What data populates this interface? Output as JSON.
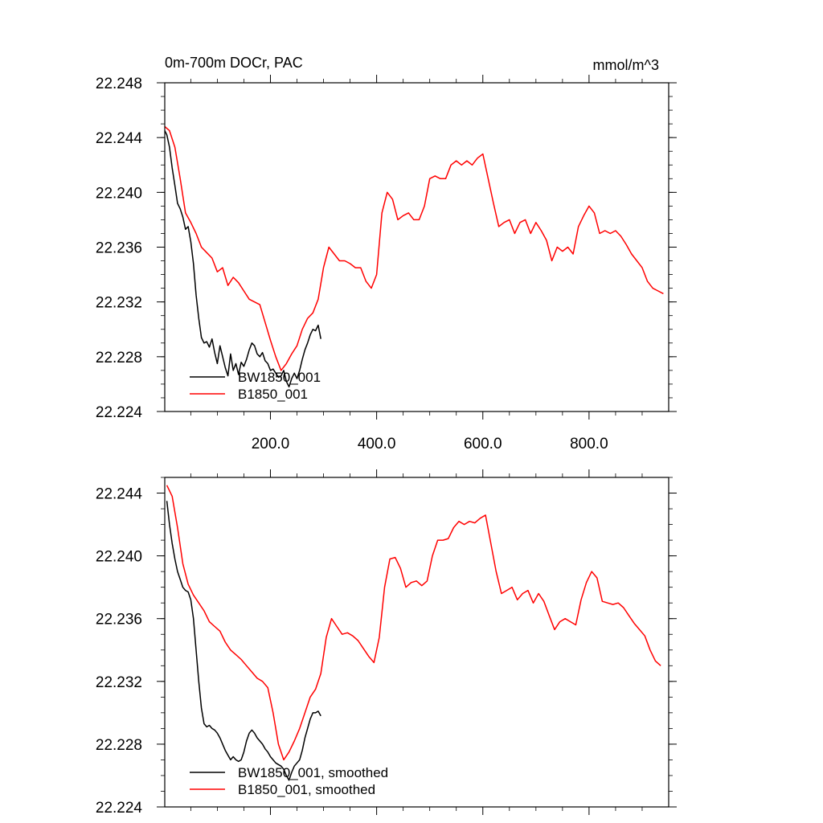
{
  "chart_data": [
    {
      "type": "line",
      "title": "0m-700m DOCr, PAC",
      "units": "mmol/m^3",
      "xlabel": "",
      "ylabel": "",
      "xlim": [
        1,
        950
      ],
      "ylim": [
        22.224,
        22.248
      ],
      "xticks": [
        200,
        400,
        600,
        800
      ],
      "xtick_labels": [
        "200.0",
        "400.0",
        "600.0",
        "800.0"
      ],
      "yticks": [
        22.224,
        22.228,
        22.232,
        22.236,
        22.24,
        22.244,
        22.248
      ],
      "ytick_labels": [
        "22.224",
        "22.228",
        "22.232",
        "22.236",
        "22.240",
        "22.244",
        "22.248"
      ],
      "grid": false,
      "legend_position": "bottom-left",
      "series": [
        {
          "name": "BW1850_001",
          "color": "#000000",
          "x": [
            1,
            5,
            10,
            15,
            20,
            25,
            30,
            35,
            40,
            45,
            50,
            55,
            60,
            65,
            70,
            75,
            80,
            85,
            90,
            95,
            100,
            105,
            110,
            115,
            120,
            125,
            130,
            135,
            140,
            145,
            150,
            155,
            160,
            165,
            170,
            175,
            180,
            185,
            190,
            195,
            200,
            205,
            210,
            215,
            220,
            225,
            230,
            235,
            240,
            245,
            250,
            255,
            260,
            265,
            270,
            275,
            280,
            285,
            290,
            295
          ],
          "y": [
            22.2445,
            22.2442,
            22.2433,
            22.2418,
            22.2405,
            22.2392,
            22.2388,
            22.2382,
            22.2373,
            22.2375,
            22.2364,
            22.2348,
            22.2325,
            22.2308,
            22.2294,
            22.229,
            22.2291,
            22.2287,
            22.2293,
            22.2283,
            22.2275,
            22.2288,
            22.228,
            22.2272,
            22.2266,
            22.2282,
            22.227,
            22.2275,
            22.2267,
            22.2276,
            22.2273,
            22.2278,
            22.2285,
            22.229,
            22.2288,
            22.2282,
            22.228,
            22.2283,
            22.2277,
            22.2275,
            22.227,
            22.2271,
            22.2268,
            22.2265,
            22.2266,
            22.227,
            22.2262,
            22.2258,
            22.2264,
            22.2268,
            22.2264,
            22.227,
            22.2278,
            22.2285,
            22.229,
            22.2296,
            22.23,
            22.2299,
            22.2303,
            22.2293
          ]
        },
        {
          "name": "B1850_001",
          "color": "#ff0000",
          "x": [
            1,
            10,
            20,
            30,
            40,
            50,
            60,
            70,
            80,
            90,
            100,
            110,
            120,
            130,
            140,
            150,
            160,
            170,
            180,
            190,
            200,
            210,
            220,
            230,
            240,
            250,
            260,
            270,
            280,
            290,
            300,
            310,
            320,
            330,
            340,
            350,
            360,
            370,
            380,
            390,
            400,
            410,
            420,
            430,
            440,
            450,
            460,
            470,
            480,
            490,
            500,
            510,
            520,
            530,
            540,
            550,
            560,
            570,
            580,
            590,
            600,
            610,
            620,
            630,
            640,
            650,
            660,
            670,
            680,
            690,
            700,
            710,
            720,
            730,
            740,
            750,
            760,
            770,
            780,
            790,
            800,
            810,
            820,
            830,
            840,
            850,
            860,
            870,
            880,
            890,
            900,
            910,
            920,
            930,
            940
          ],
          "y": [
            22.2448,
            22.2445,
            22.2433,
            22.241,
            22.2385,
            22.2378,
            22.237,
            22.236,
            22.2356,
            22.2352,
            22.2342,
            22.2345,
            22.2332,
            22.2338,
            22.2334,
            22.2328,
            22.2322,
            22.232,
            22.2318,
            22.2305,
            22.2292,
            22.228,
            22.227,
            22.2275,
            22.2282,
            22.2288,
            22.23,
            22.2308,
            22.2312,
            22.2322,
            22.2345,
            22.236,
            22.2355,
            22.235,
            22.235,
            22.2348,
            22.2345,
            22.2345,
            22.2335,
            22.233,
            22.234,
            22.2385,
            22.24,
            22.2395,
            22.238,
            22.2383,
            22.2385,
            22.238,
            22.238,
            22.239,
            22.241,
            22.2412,
            22.241,
            22.241,
            22.242,
            22.2423,
            22.242,
            22.2423,
            22.242,
            22.2425,
            22.2428,
            22.241,
            22.2392,
            22.2375,
            22.2378,
            22.238,
            22.237,
            22.2378,
            22.238,
            22.237,
            22.2378,
            22.2372,
            22.2365,
            22.235,
            22.236,
            22.2357,
            22.236,
            22.2355,
            22.2375,
            22.2383,
            22.239,
            22.2385,
            22.237,
            22.2372,
            22.237,
            22.2372,
            22.2368,
            22.2362,
            22.2355,
            22.235,
            22.2345,
            22.2335,
            22.233,
            22.2328,
            22.2326
          ]
        }
      ]
    },
    {
      "type": "line",
      "title": "",
      "xlabel": "",
      "ylabel": "",
      "xlim": [
        1,
        950
      ],
      "ylim": [
        22.224,
        22.245
      ],
      "xticks": [
        200,
        400,
        600,
        800
      ],
      "yticks": [
        22.224,
        22.228,
        22.232,
        22.236,
        22.24,
        22.244
      ],
      "ytick_labels": [
        "22.224",
        "22.228",
        "22.232",
        "22.236",
        "22.240",
        "22.244"
      ],
      "grid": false,
      "legend_position": "bottom-left",
      "series": [
        {
          "name": "BW1850_001, smoothed",
          "color": "#000000",
          "x": [
            5,
            10,
            15,
            20,
            25,
            30,
            35,
            40,
            45,
            50,
            55,
            60,
            65,
            70,
            75,
            80,
            85,
            90,
            95,
            100,
            105,
            110,
            115,
            120,
            125,
            130,
            135,
            140,
            145,
            150,
            155,
            160,
            165,
            170,
            175,
            180,
            185,
            190,
            195,
            200,
            205,
            210,
            215,
            220,
            225,
            230,
            235,
            240,
            245,
            250,
            255,
            260,
            265,
            270,
            275,
            280,
            285,
            290,
            295
          ],
          "y": [
            22.2435,
            22.242,
            22.2408,
            22.2398,
            22.239,
            22.2385,
            22.238,
            22.2378,
            22.2377,
            22.2372,
            22.236,
            22.234,
            22.232,
            22.2303,
            22.2293,
            22.2291,
            22.2292,
            22.229,
            22.2289,
            22.2287,
            22.2284,
            22.228,
            22.2276,
            22.2273,
            22.227,
            22.2272,
            22.227,
            22.2269,
            22.227,
            22.2275,
            22.2282,
            22.2287,
            22.2289,
            22.2287,
            22.2284,
            22.2282,
            22.228,
            22.2277,
            22.2275,
            22.2272,
            22.227,
            22.2268,
            22.2267,
            22.2266,
            22.2264,
            22.226,
            22.2257,
            22.2262,
            22.2266,
            22.2268,
            22.227,
            22.2276,
            22.2284,
            22.229,
            22.2296,
            22.23,
            22.23,
            22.2301,
            22.2298
          ]
        },
        {
          "name": "B1850_001, smoothed",
          "color": "#ff0000",
          "x": [
            5,
            15,
            25,
            35,
            45,
            55,
            65,
            75,
            85,
            95,
            105,
            115,
            125,
            135,
            145,
            155,
            165,
            175,
            185,
            195,
            205,
            215,
            225,
            235,
            245,
            255,
            265,
            275,
            285,
            295,
            305,
            315,
            325,
            335,
            345,
            355,
            365,
            375,
            385,
            395,
            405,
            415,
            425,
            435,
            445,
            455,
            465,
            475,
            485,
            495,
            505,
            515,
            525,
            535,
            545,
            555,
            565,
            575,
            585,
            595,
            605,
            615,
            625,
            635,
            645,
            655,
            665,
            675,
            685,
            695,
            705,
            715,
            725,
            735,
            745,
            755,
            765,
            775,
            785,
            795,
            805,
            815,
            825,
            835,
            845,
            855,
            865,
            875,
            885,
            895,
            905,
            915,
            925,
            935
          ],
          "y": [
            22.2445,
            22.2438,
            22.2418,
            22.2395,
            22.2382,
            22.2375,
            22.237,
            22.2365,
            22.2358,
            22.2355,
            22.2352,
            22.2345,
            22.234,
            22.2337,
            22.2334,
            22.233,
            22.2326,
            22.2322,
            22.232,
            22.2316,
            22.23,
            22.228,
            22.227,
            22.2275,
            22.2282,
            22.229,
            22.23,
            22.231,
            22.2315,
            22.2325,
            22.2348,
            22.236,
            22.2355,
            22.235,
            22.2351,
            22.2349,
            22.2346,
            22.2341,
            22.2336,
            22.2332,
            22.2348,
            22.238,
            22.2398,
            22.2399,
            22.2392,
            22.238,
            22.2383,
            22.2384,
            22.2381,
            22.2384,
            22.24,
            22.241,
            22.241,
            22.2411,
            22.2418,
            22.2422,
            22.242,
            22.2422,
            22.2421,
            22.2424,
            22.2426,
            22.2408,
            22.239,
            22.2376,
            22.2378,
            22.238,
            22.2372,
            22.2376,
            22.2378,
            22.237,
            22.2376,
            22.2371,
            22.2362,
            22.2353,
            22.2358,
            22.236,
            22.2358,
            22.2356,
            22.2372,
            22.2383,
            22.239,
            22.2386,
            22.2371,
            22.237,
            22.2369,
            22.237,
            22.2367,
            22.2362,
            22.2357,
            22.2353,
            22.2349,
            22.234,
            22.2333,
            22.233
          ]
        }
      ]
    }
  ]
}
